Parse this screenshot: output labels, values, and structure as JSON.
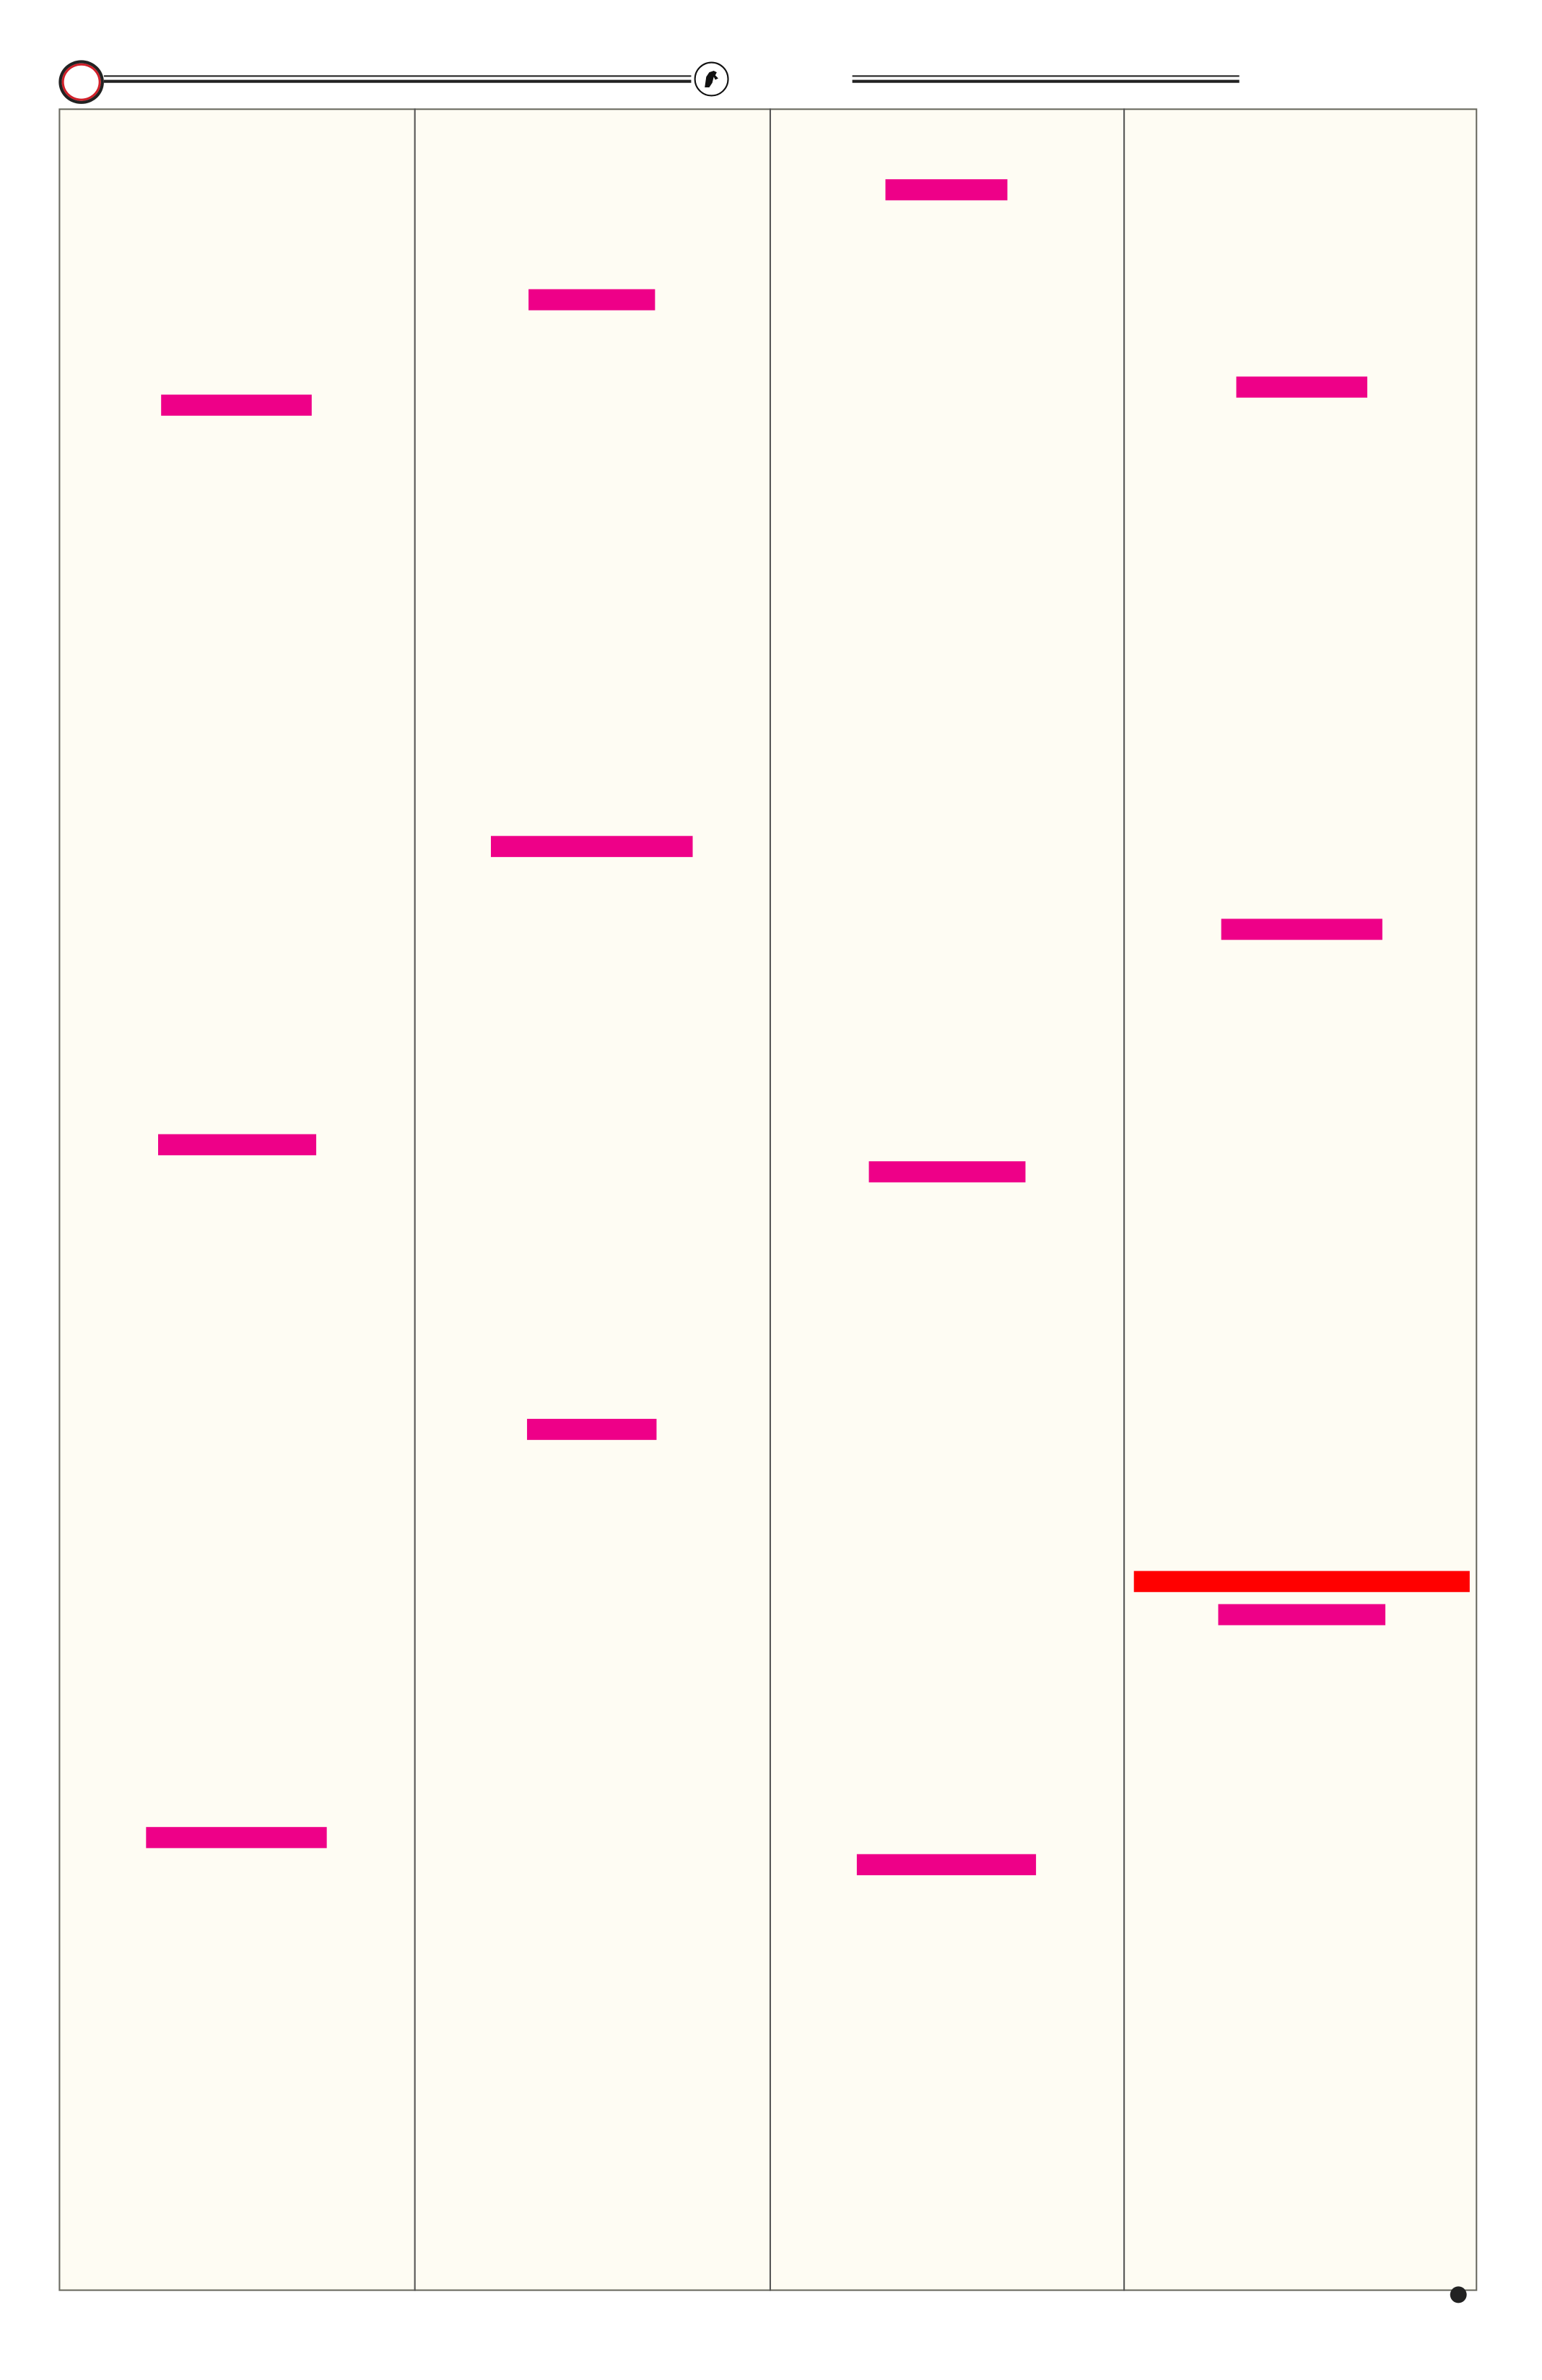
{
  "colors": {
    "panel_background": "#fefcf3",
    "panel_border": "#6b6b62",
    "marker_bar": "#ee0088",
    "highlight_bar": "#ff0000",
    "header_ring": "#d0202a",
    "rule": "#222222"
  },
  "header": {
    "left_icon": "ring-icon",
    "center_icon": "horse-emblem-icon"
  },
  "columns": [
    {
      "bars": [
        "marker",
        "marker",
        "marker"
      ]
    },
    {
      "bars": [
        "marker",
        "marker",
        "marker"
      ]
    },
    {
      "bars": [
        "marker",
        "marker",
        "marker"
      ]
    },
    {
      "bars": [
        "marker",
        "marker",
        "highlight",
        "marker"
      ]
    }
  ],
  "footer": {
    "icon": "dot-icon"
  }
}
